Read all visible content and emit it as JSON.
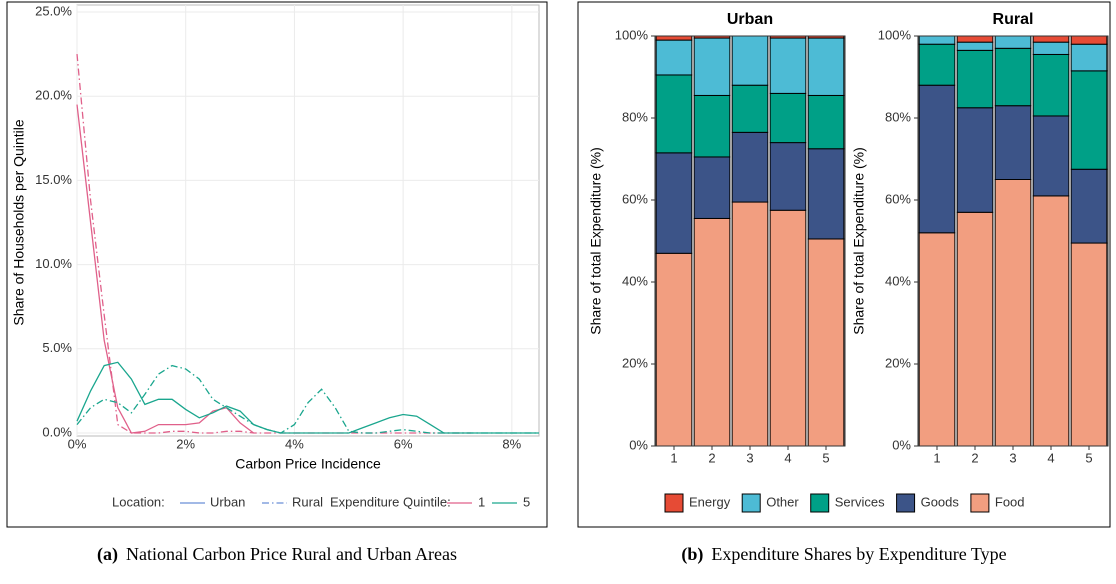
{
  "chart_data": [
    {
      "type": "line",
      "caption_label": "(a)",
      "caption": "National Carbon Price Rural and Urban Areas",
      "x_label": "Carbon Price Incidence",
      "y_label": "Share of Households per Quintile",
      "xlim": [
        0,
        8.5
      ],
      "ylim": [
        0,
        25
      ],
      "xticks": [
        {
          "value": 0,
          "label": "0%"
        },
        {
          "value": 2,
          "label": "2%"
        },
        {
          "value": 4,
          "label": "4%"
        },
        {
          "value": 6,
          "label": "6%"
        },
        {
          "value": 8,
          "label": "8%"
        }
      ],
      "yticks": [
        {
          "value": 0,
          "label": "0.0%"
        },
        {
          "value": 5,
          "label": "5.0%"
        },
        {
          "value": 10,
          "label": "10.0%"
        },
        {
          "value": 15,
          "label": "15.0%"
        },
        {
          "value": 20,
          "label": "20.0%"
        },
        {
          "value": 25,
          "label": "25.0%"
        }
      ],
      "grid": true,
      "legend": {
        "location_title": "Location:",
        "locations": [
          {
            "label": "Urban",
            "dash": "solid",
            "color": "#6b8fd6"
          },
          {
            "label": "Rural",
            "dash": "dashdot",
            "color": "#6b8fd6"
          }
        ],
        "quintile_title": "Expenditure Quintile:",
        "quintiles": [
          {
            "label": "1",
            "color": "#e0608a"
          },
          {
            "label": "5",
            "color": "#1aa68e"
          }
        ]
      },
      "x": [
        0,
        0.25,
        0.5,
        0.75,
        1,
        1.25,
        1.5,
        1.75,
        2,
        2.25,
        2.5,
        2.75,
        3,
        3.25,
        3.5,
        3.75,
        4,
        4.25,
        4.5,
        4.75,
        5,
        5.25,
        5.5,
        5.75,
        6,
        6.25,
        6.5,
        6.75,
        7,
        7.25,
        7.5,
        7.75,
        8,
        8.25,
        8.5
      ],
      "series": [
        {
          "location": "Urban",
          "quintile": "1",
          "color": "#e0608a",
          "dash": "solid",
          "values": [
            19.5,
            12.5,
            5.5,
            1.5,
            0,
            0.1,
            0.5,
            0.5,
            0.5,
            0.6,
            1.3,
            1.5,
            0.6,
            0,
            null,
            null,
            null,
            null,
            null,
            null,
            null,
            null,
            null,
            null,
            null,
            null,
            null,
            null,
            null,
            null,
            null,
            null,
            null,
            null,
            null
          ]
        },
        {
          "location": "Rural",
          "quintile": "1",
          "color": "#e0608a",
          "dash": "dashdot",
          "values": [
            22.5,
            13.8,
            7,
            0.5,
            0,
            0,
            0,
            0.1,
            0.1,
            0,
            0,
            0.1,
            0.1,
            0,
            0,
            0,
            0,
            0,
            0,
            0,
            0,
            0,
            0,
            0,
            0,
            0,
            0,
            0,
            0,
            0,
            null,
            null,
            null,
            null,
            null
          ]
        },
        {
          "location": "Urban",
          "quintile": "5",
          "color": "#1aa68e",
          "dash": "solid",
          "values": [
            0.7,
            2.5,
            4,
            4.2,
            3.2,
            1.7,
            2,
            2,
            1.4,
            0.9,
            1.2,
            1.6,
            1.3,
            0.5,
            0.2,
            0,
            0,
            0,
            0,
            0,
            0,
            0.3,
            0.6,
            0.9,
            1.1,
            1,
            0.5,
            0,
            0,
            0,
            0,
            0,
            0,
            0,
            0
          ]
        },
        {
          "location": "Rural",
          "quintile": "5",
          "color": "#1aa68e",
          "dash": "dashdot",
          "values": [
            0.5,
            1.5,
            2,
            1.8,
            1.2,
            2.3,
            3.5,
            4,
            3.8,
            3.2,
            2,
            1.5,
            1,
            0.5,
            0.2,
            0,
            0.5,
            1.8,
            2.6,
            1.5,
            0.1,
            0,
            0,
            0.1,
            0.2,
            0.1,
            0,
            0,
            0,
            0,
            0,
            0,
            0,
            0,
            0
          ]
        }
      ]
    },
    {
      "type": "stacked-bar",
      "caption_label": "(b)",
      "caption": "Expenditure Shares by Expenditure Type",
      "y_label": "Share of total Expenditure (%)",
      "ylim": [
        0,
        100
      ],
      "yticks": [
        {
          "value": 0,
          "label": "0%"
        },
        {
          "value": 20,
          "label": "20%"
        },
        {
          "value": 40,
          "label": "40%"
        },
        {
          "value": 60,
          "label": "60%"
        },
        {
          "value": 80,
          "label": "80%"
        },
        {
          "value": 100,
          "label": "100%"
        }
      ],
      "categories": [
        "1",
        "2",
        "3",
        "4",
        "5"
      ],
      "legend_order": [
        "Energy",
        "Other",
        "Services",
        "Goods",
        "Food"
      ],
      "panels": [
        {
          "title": "Urban",
          "series": [
            {
              "name": "Food",
              "color": "#f29e80",
              "values": [
                47,
                55.5,
                59.5,
                57.5,
                50.5
              ]
            },
            {
              "name": "Goods",
              "color": "#3c5488",
              "values": [
                24.5,
                15,
                17,
                16.5,
                22
              ]
            },
            {
              "name": "Services",
              "color": "#00a087",
              "values": [
                19,
                15,
                11.5,
                12,
                13
              ]
            },
            {
              "name": "Other",
              "color": "#4dbbd5",
              "values": [
                8.5,
                14,
                12,
                13.5,
                14
              ]
            },
            {
              "name": "Energy",
              "color": "#e64b35",
              "values": [
                1,
                0.5,
                0,
                0.5,
                0.5
              ]
            }
          ]
        },
        {
          "title": "Rural",
          "series": [
            {
              "name": "Food",
              "color": "#f29e80",
              "values": [
                52,
                57,
                65,
                61,
                49.5
              ]
            },
            {
              "name": "Goods",
              "color": "#3c5488",
              "values": [
                36,
                25.5,
                18,
                19.5,
                18
              ]
            },
            {
              "name": "Services",
              "color": "#00a087",
              "values": [
                10,
                14,
                14,
                15,
                24
              ]
            },
            {
              "name": "Other",
              "color": "#4dbbd5",
              "values": [
                2,
                2,
                3,
                3,
                6.5
              ]
            },
            {
              "name": "Energy",
              "color": "#e64b35",
              "values": [
                0,
                1.5,
                0,
                1.5,
                2
              ]
            }
          ]
        }
      ]
    }
  ]
}
